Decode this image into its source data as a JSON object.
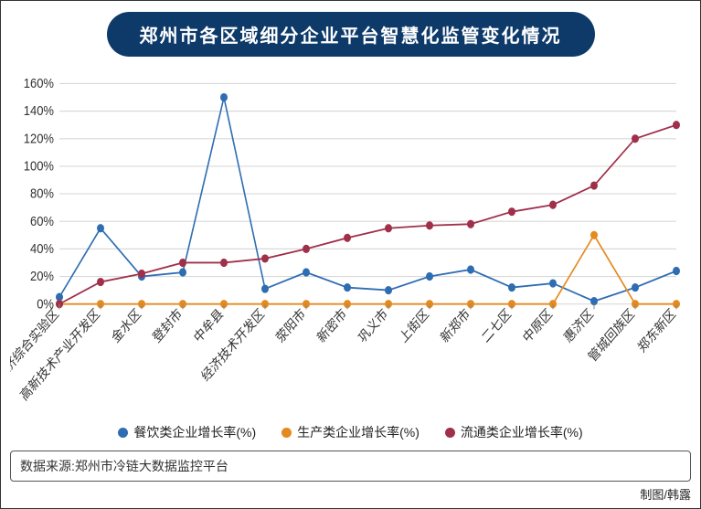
{
  "title": "郑州市各区域细分企业平台智慧化监管变化情况",
  "source_label": "数据来源:郑州市冷链大数据监控平台",
  "credit": "制图/韩露",
  "chart": {
    "type": "line",
    "background_color": "#ffffff",
    "title_color": "#ffffff",
    "title_bg": "#0e3a6a",
    "grid_color": "#d9d9d9",
    "axis_color": "#888888",
    "text_color": "#333333",
    "label_fontsize": 13,
    "title_fontsize": 20,
    "marker_radius": 4,
    "line_width": 1.6,
    "categories": [
      "航空港经济综合实验区",
      "高新技术产业开发区",
      "金水区",
      "登封市",
      "中牟县",
      "经济技术开发区",
      "荥阳市",
      "新密市",
      "巩义市",
      "上街区",
      "新郑市",
      "二七区",
      "中原区",
      "惠济区",
      "管城回族区",
      "郑东新区"
    ],
    "ylim": [
      0,
      160
    ],
    "ytick_step": 20,
    "ytick_suffix": "%",
    "series": [
      {
        "name": "餐饮类企业增长率(%)",
        "color": "#2f6db3",
        "values": [
          5,
          55,
          20,
          23,
          150,
          11,
          23,
          12,
          10,
          20,
          25,
          12,
          15,
          2,
          12,
          24
        ]
      },
      {
        "name": "生产类企业增长率(%)",
        "color": "#e58a1f",
        "values": [
          0,
          0,
          0,
          0,
          0,
          0,
          0,
          0,
          0,
          0,
          0,
          0,
          0,
          50,
          0,
          0
        ]
      },
      {
        "name": "流通类企业增长率(%)",
        "color": "#a0304a",
        "values": [
          0,
          16,
          22,
          30,
          30,
          33,
          40,
          48,
          55,
          57,
          58,
          67,
          72,
          86,
          120,
          130
        ]
      }
    ]
  },
  "legend": {
    "items": [
      {
        "label": "餐饮类企业增长率(%)",
        "color": "#2f6db3"
      },
      {
        "label": "生产类企业增长率(%)",
        "color": "#e58a1f"
      },
      {
        "label": "流通类企业增长率(%)",
        "color": "#a0304a"
      }
    ]
  }
}
